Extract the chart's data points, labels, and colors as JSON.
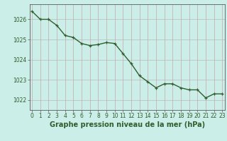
{
  "x": [
    0,
    1,
    2,
    3,
    4,
    5,
    6,
    7,
    8,
    9,
    10,
    11,
    12,
    13,
    14,
    15,
    16,
    17,
    18,
    19,
    20,
    21,
    22,
    23
  ],
  "y": [
    1026.4,
    1026.0,
    1026.0,
    1025.7,
    1025.2,
    1025.1,
    1024.8,
    1024.7,
    1024.75,
    1024.85,
    1024.8,
    1024.3,
    1023.8,
    1023.2,
    1022.9,
    1022.6,
    1022.8,
    1022.8,
    1022.6,
    1022.5,
    1022.5,
    1022.1,
    1022.3,
    1022.3
  ],
  "line_color": "#2d5e2d",
  "marker": "+",
  "marker_color": "#2d5e2d",
  "bg_color": "#cceee8",
  "grid_h_color": "#b8b8b8",
  "grid_v_color": "#c9a8a8",
  "xlabel": "Graphe pression niveau de la mer (hPa)",
  "xlabel_color": "#2d5e2d",
  "tick_color": "#2d5e2d",
  "axis_color": "#5a5a5a",
  "ylim": [
    1021.5,
    1026.75
  ],
  "yticks": [
    1022,
    1023,
    1024,
    1025,
    1026
  ],
  "xticks": [
    0,
    1,
    2,
    3,
    4,
    5,
    6,
    7,
    8,
    9,
    10,
    11,
    12,
    13,
    14,
    15,
    16,
    17,
    18,
    19,
    20,
    21,
    22,
    23
  ],
  "xlabel_fontsize": 7.0,
  "tick_fontsize": 5.5,
  "linewidth": 1.0,
  "markersize": 3.5,
  "xlim": [
    -0.3,
    23.3
  ]
}
